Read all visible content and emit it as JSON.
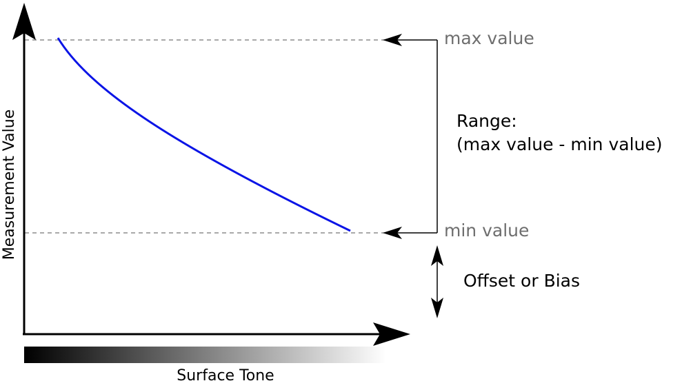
{
  "diagram": {
    "y_axis_label": "Measurement Value",
    "x_axis_label": "Surface Tone",
    "max_label": "max value",
    "min_label": "min value",
    "range_title": "Range:",
    "range_formula": "(max value - min value)",
    "offset_label": "Offset or Bias",
    "curve_color": "#0a14e6",
    "guide_color": "#8c8c8c",
    "gradient_start_color": "#000000",
    "gradient_end_color": "#ffffff"
  }
}
